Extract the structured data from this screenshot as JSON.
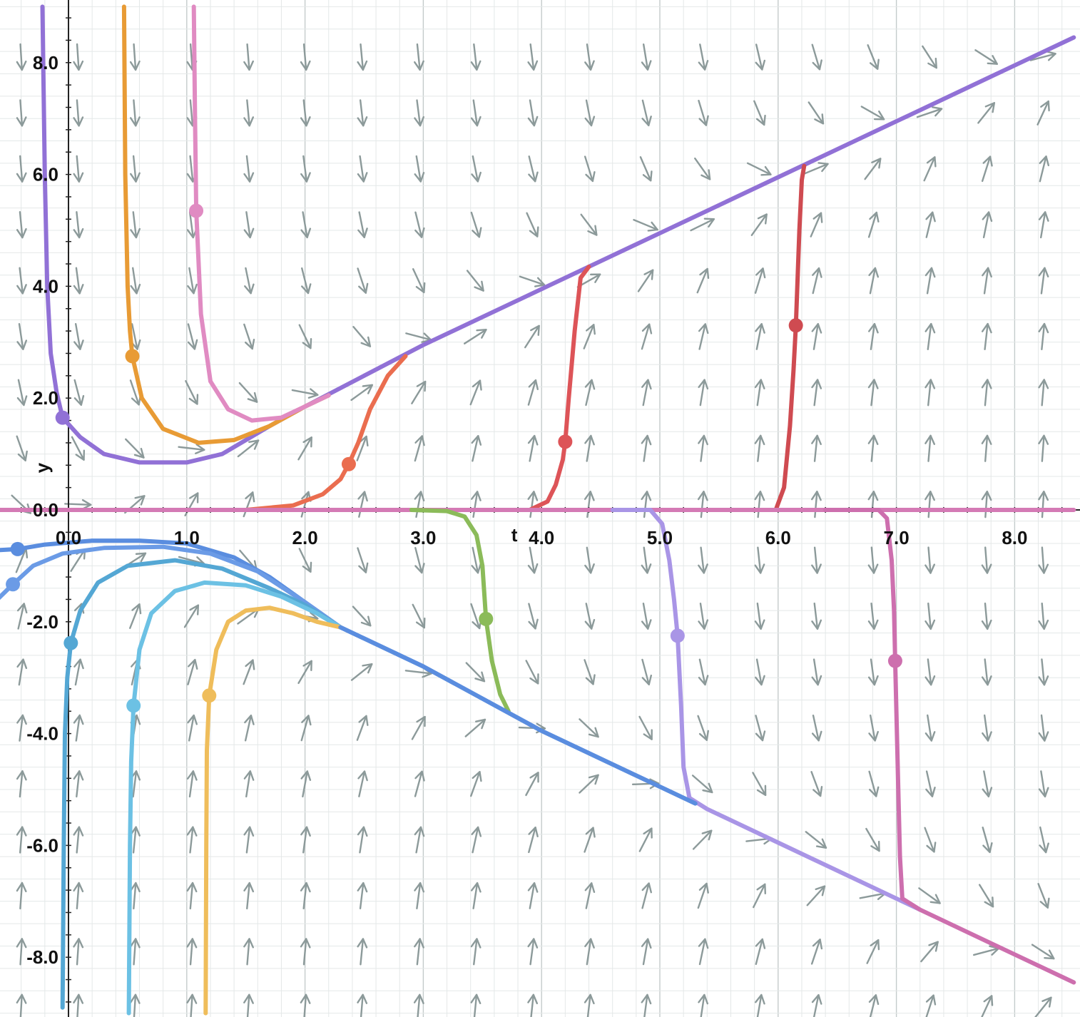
{
  "chart_data": {
    "type": "line",
    "subtype": "slope-field",
    "title": "",
    "xlabel": "t",
    "ylabel": "y",
    "xlim": [
      -0.6,
      8.5
    ],
    "ylim": [
      -9.0,
      9.0
    ],
    "x_ticks": [
      0,
      1,
      2,
      3,
      4,
      5,
      6,
      7,
      8
    ],
    "y_ticks": [
      -8,
      -6,
      -4,
      -2,
      0,
      2,
      4,
      6,
      8
    ],
    "x_tick_labels": [
      "0.0",
      "1.0",
      "2.0",
      "3.0",
      "4.0",
      "5.0",
      "6.0",
      "7.0",
      "8.0"
    ],
    "y_tick_labels": [
      "-8.0",
      "-6.0",
      "-4.0",
      "-2.0",
      "0.0",
      "2.0",
      "4.0",
      "6.0",
      "8.0"
    ],
    "grid": true,
    "slope_field": {
      "t_step": 0.48,
      "y_step": 1.0,
      "arrow_color": "#8c9a9a",
      "description_of_direction": "arrows point toward the lines y = t (y>0) and y = -t (y<0)"
    },
    "series": [
      {
        "color": "#9171d6",
        "marker": [
          -0.05,
          1.65
        ],
        "points": [
          [
            -0.22,
            9.0
          ],
          [
            -0.2,
            6.0
          ],
          [
            -0.18,
            4.0
          ],
          [
            -0.15,
            2.8
          ],
          [
            -0.1,
            2.1
          ],
          [
            -0.05,
            1.65
          ],
          [
            0.1,
            1.3
          ],
          [
            0.3,
            1.0
          ],
          [
            0.6,
            0.85
          ],
          [
            1.0,
            0.85
          ],
          [
            1.3,
            1.0
          ],
          [
            1.7,
            1.5
          ],
          [
            2.0,
            1.85
          ],
          [
            2.5,
            2.4
          ],
          [
            3.0,
            2.95
          ],
          [
            4.0,
            3.95
          ],
          [
            5.0,
            4.95
          ],
          [
            6.0,
            5.95
          ],
          [
            7.0,
            6.95
          ],
          [
            8.0,
            7.95
          ],
          [
            8.5,
            8.45
          ]
        ]
      },
      {
        "color": "#e89b35",
        "marker": [
          0.54,
          2.75
        ],
        "points": [
          [
            0.47,
            9.0
          ],
          [
            0.48,
            6.0
          ],
          [
            0.5,
            4.0
          ],
          [
            0.52,
            3.2
          ],
          [
            0.54,
            2.75
          ],
          [
            0.62,
            2.0
          ],
          [
            0.8,
            1.45
          ],
          [
            1.1,
            1.2
          ],
          [
            1.4,
            1.25
          ],
          [
            1.7,
            1.5
          ],
          [
            2.0,
            1.85
          ],
          [
            2.2,
            2.05
          ]
        ]
      },
      {
        "color": "#e08bc2",
        "marker": [
          1.08,
          5.35
        ],
        "points": [
          [
            1.06,
            9.0
          ],
          [
            1.07,
            7.0
          ],
          [
            1.08,
            5.35
          ],
          [
            1.12,
            3.5
          ],
          [
            1.2,
            2.3
          ],
          [
            1.35,
            1.8
          ],
          [
            1.55,
            1.6
          ],
          [
            1.8,
            1.65
          ],
          [
            2.0,
            1.85
          ],
          [
            2.2,
            2.05
          ]
        ]
      },
      {
        "color": "#ea6d4f",
        "marker": [
          2.37,
          0.82
        ],
        "points": [
          [
            0.5,
            0.0
          ],
          [
            1.5,
            0.0
          ],
          [
            1.9,
            0.08
          ],
          [
            2.15,
            0.28
          ],
          [
            2.3,
            0.55
          ],
          [
            2.37,
            0.82
          ],
          [
            2.45,
            1.2
          ],
          [
            2.55,
            1.8
          ],
          [
            2.7,
            2.4
          ],
          [
            2.85,
            2.75
          ]
        ]
      },
      {
        "color": "#dd5458",
        "marker": [
          4.2,
          1.22
        ],
        "points": [
          [
            3.6,
            0.0
          ],
          [
            3.9,
            0.0
          ],
          [
            4.05,
            0.15
          ],
          [
            4.12,
            0.45
          ],
          [
            4.18,
            0.9
          ],
          [
            4.2,
            1.22
          ],
          [
            4.23,
            2.0
          ],
          [
            4.28,
            3.2
          ],
          [
            4.33,
            4.15
          ],
          [
            4.4,
            4.35
          ]
        ]
      },
      {
        "color": "#cf4b51",
        "marker": [
          6.15,
          3.3
        ],
        "points": [
          [
            5.5,
            0.0
          ],
          [
            5.98,
            0.0
          ],
          [
            6.05,
            0.4
          ],
          [
            6.1,
            1.5
          ],
          [
            6.13,
            2.5
          ],
          [
            6.15,
            3.3
          ],
          [
            6.18,
            5.0
          ],
          [
            6.2,
            5.9
          ],
          [
            6.22,
            6.15
          ]
        ]
      },
      {
        "color": "#d47ab5",
        "marker": null,
        "points": [
          [
            -0.6,
            0.0
          ],
          [
            8.5,
            0.0
          ]
        ]
      },
      {
        "color": "#8bbb59",
        "marker": [
          3.53,
          -1.95
        ],
        "points": [
          [
            2.9,
            0.0
          ],
          [
            3.2,
            -0.02
          ],
          [
            3.35,
            -0.12
          ],
          [
            3.45,
            -0.45
          ],
          [
            3.5,
            -1.0
          ],
          [
            3.53,
            -1.95
          ],
          [
            3.58,
            -2.7
          ],
          [
            3.65,
            -3.3
          ],
          [
            3.72,
            -3.6
          ]
        ]
      },
      {
        "color": "#a995e6",
        "marker": [
          5.15,
          -2.25
        ],
        "points": [
          [
            4.6,
            0.0
          ],
          [
            4.92,
            0.0
          ],
          [
            5.02,
            -0.25
          ],
          [
            5.08,
            -0.9
          ],
          [
            5.12,
            -1.6
          ],
          [
            5.15,
            -2.25
          ],
          [
            5.18,
            -3.5
          ],
          [
            5.2,
            -4.6
          ],
          [
            5.25,
            -5.15
          ],
          [
            5.4,
            -5.35
          ],
          [
            6.0,
            -5.95
          ],
          [
            7.0,
            -6.95
          ],
          [
            7.2,
            -7.15
          ]
        ]
      },
      {
        "color": "#cd6fae",
        "marker": [
          6.99,
          -2.7
        ],
        "points": [
          [
            6.4,
            0.0
          ],
          [
            6.85,
            0.0
          ],
          [
            6.92,
            -0.15
          ],
          [
            6.96,
            -0.9
          ],
          [
            6.98,
            -1.8
          ],
          [
            6.99,
            -2.7
          ],
          [
            7.01,
            -4.5
          ],
          [
            7.03,
            -6.2
          ],
          [
            7.05,
            -6.95
          ],
          [
            7.2,
            -7.15
          ],
          [
            8.0,
            -7.95
          ],
          [
            8.5,
            -8.45
          ]
        ]
      },
      {
        "color": "#5a8ddf",
        "marker": [
          -0.43,
          -0.7
        ],
        "points": [
          [
            -0.6,
            -0.72
          ],
          [
            -0.43,
            -0.7
          ],
          [
            -0.2,
            -0.62
          ],
          [
            0.2,
            -0.55
          ],
          [
            0.6,
            -0.55
          ],
          [
            1.0,
            -0.6
          ],
          [
            1.4,
            -0.85
          ],
          [
            1.7,
            -1.2
          ],
          [
            2.0,
            -1.65
          ],
          [
            2.3,
            -2.1
          ],
          [
            3.0,
            -2.8
          ],
          [
            4.0,
            -3.95
          ],
          [
            5.0,
            -4.95
          ],
          [
            5.3,
            -5.25
          ]
        ]
      },
      {
        "color": "#6b9be6",
        "marker": [
          -0.47,
          -1.33
        ],
        "points": [
          [
            -0.6,
            -1.6
          ],
          [
            -0.47,
            -1.33
          ],
          [
            -0.3,
            -1.0
          ],
          [
            -0.05,
            -0.78
          ],
          [
            0.3,
            -0.68
          ],
          [
            0.8,
            -0.66
          ],
          [
            1.2,
            -0.78
          ],
          [
            1.6,
            -1.1
          ],
          [
            2.0,
            -1.65
          ],
          [
            2.3,
            -2.1
          ]
        ]
      },
      {
        "color": "#54a7d4",
        "marker": [
          0.02,
          -2.38
        ],
        "points": [
          [
            -0.05,
            -8.9
          ],
          [
            -0.04,
            -6.0
          ],
          [
            -0.03,
            -4.0
          ],
          [
            -0.01,
            -3.0
          ],
          [
            0.02,
            -2.38
          ],
          [
            0.1,
            -1.8
          ],
          [
            0.25,
            -1.3
          ],
          [
            0.5,
            -1.0
          ],
          [
            0.9,
            -0.9
          ],
          [
            1.3,
            -1.05
          ],
          [
            1.7,
            -1.4
          ],
          [
            2.0,
            -1.7
          ],
          [
            2.3,
            -2.1
          ]
        ]
      },
      {
        "color": "#6cc1e4",
        "marker": [
          0.55,
          -3.5
        ],
        "points": [
          [
            0.51,
            -9.0
          ],
          [
            0.52,
            -6.0
          ],
          [
            0.53,
            -4.5
          ],
          [
            0.55,
            -3.5
          ],
          [
            0.6,
            -2.5
          ],
          [
            0.7,
            -1.85
          ],
          [
            0.9,
            -1.45
          ],
          [
            1.15,
            -1.3
          ],
          [
            1.5,
            -1.35
          ],
          [
            1.8,
            -1.55
          ],
          [
            2.1,
            -1.85
          ],
          [
            2.3,
            -2.1
          ]
        ]
      },
      {
        "color": "#efbd5b",
        "marker": [
          1.19,
          -3.32
        ],
        "points": [
          [
            1.16,
            -9.0
          ],
          [
            1.165,
            -6.0
          ],
          [
            1.17,
            -4.3
          ],
          [
            1.19,
            -3.32
          ],
          [
            1.25,
            -2.5
          ],
          [
            1.35,
            -2.0
          ],
          [
            1.5,
            -1.8
          ],
          [
            1.7,
            -1.75
          ],
          [
            1.9,
            -1.85
          ],
          [
            2.1,
            -2.0
          ],
          [
            2.3,
            -2.1
          ]
        ]
      },
      {
        "color": "#5a8ddf",
        "marker": null,
        "points": [
          [
            2.3,
            -2.1
          ],
          [
            3.0,
            -2.8
          ],
          [
            4.0,
            -3.95
          ],
          [
            5.0,
            -4.95
          ],
          [
            5.3,
            -5.25
          ]
        ]
      }
    ]
  }
}
